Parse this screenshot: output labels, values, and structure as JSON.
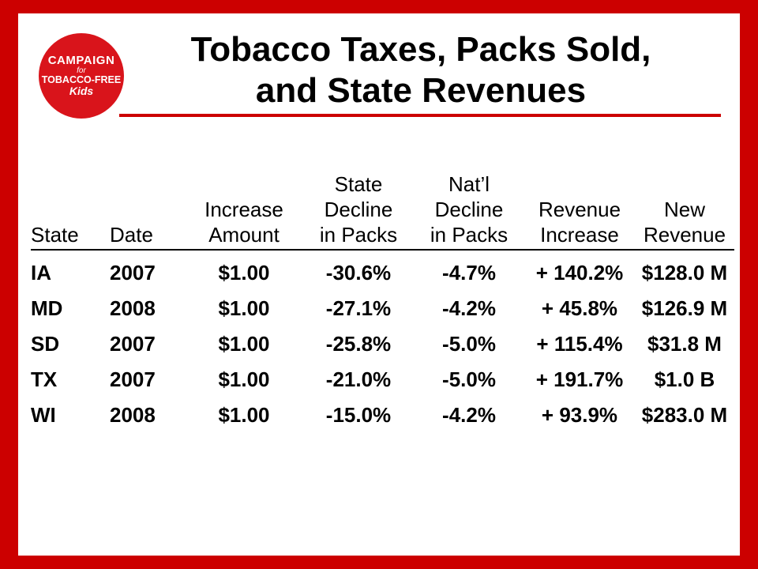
{
  "logo": {
    "line1": "CAMPAIGN",
    "line2": "for",
    "line3": "TOBACCO-FREE",
    "line4": "Kids"
  },
  "title": {
    "line1": "Tobacco Taxes, Packs Sold,",
    "line2": "and State Revenues"
  },
  "table": {
    "headers": [
      [
        "State"
      ],
      [
        "Date"
      ],
      [
        "Increase",
        "Amount"
      ],
      [
        "State",
        "Decline",
        "in Packs"
      ],
      [
        "Nat’l",
        "Decline",
        "in Packs"
      ],
      [
        "Revenue",
        "Increase"
      ],
      [
        "New",
        "Revenue"
      ]
    ],
    "rows": [
      [
        "IA",
        "2007",
        "$1.00",
        "-30.6%",
        "-4.7%",
        "+ 140.2%",
        "$128.0 M"
      ],
      [
        "MD",
        "2008",
        "$1.00",
        "-27.1%",
        "-4.2%",
        "+ 45.8%",
        "$126.9 M"
      ],
      [
        "SD",
        "2007",
        "$1.00",
        "-25.8%",
        "-5.0%",
        "+ 115.4%",
        "$31.8 M"
      ],
      [
        "TX",
        "2007",
        "$1.00",
        "-21.0%",
        "-5.0%",
        "+ 191.7%",
        "$1.0 B"
      ],
      [
        "WI",
        "2008",
        "$1.00",
        "-15.0%",
        "-4.2%",
        "+ 93.9%",
        "$283.0 M"
      ]
    ]
  },
  "colors": {
    "border": "#cc0000",
    "logo": "#d9141b",
    "rule": "#cc0000"
  }
}
